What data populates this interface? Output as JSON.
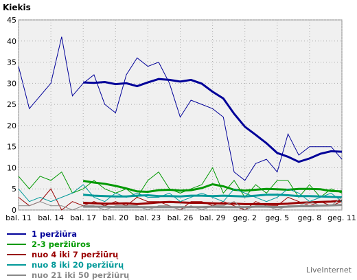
{
  "chart_data": {
    "type": "line",
    "title": "",
    "ylabel": "Kiekis",
    "ylim": [
      0,
      45
    ],
    "yticks": [
      0,
      5,
      10,
      15,
      20,
      25,
      30,
      35,
      40,
      45
    ],
    "x_labels": [
      "bal. 11",
      "bal. 14",
      "bal. 17",
      "bal. 20",
      "bal. 23",
      "bal. 26",
      "bal. 29",
      "geg. 2",
      "geg. 5",
      "geg. 8",
      "geg. 11"
    ],
    "grid": true,
    "series": [
      {
        "name": "1 peržiūra",
        "color": "#000099",
        "daily": [
          34,
          24,
          27,
          30,
          41,
          27,
          30,
          32,
          25,
          23,
          32,
          36,
          34,
          35,
          30,
          22,
          26,
          25,
          24,
          22,
          9,
          7,
          11,
          12,
          9,
          18,
          13,
          15,
          15,
          15,
          12
        ],
        "average": [
          30.2,
          30.1,
          30.3,
          29.8,
          30.0,
          29.3,
          30.2,
          31.0,
          30.8,
          30.4,
          30.8,
          29.9,
          28.0,
          26.4,
          22.8,
          19.7,
          17.8,
          15.8,
          13.5,
          12.6,
          11.4,
          12.2,
          13.3,
          13.9,
          13.8
        ]
      },
      {
        "name": "2-3 peržiūros",
        "color": "#009900",
        "daily": [
          8,
          5,
          8,
          7,
          9,
          4,
          5,
          7,
          5,
          4,
          5,
          3,
          7,
          9,
          5,
          4,
          5,
          6,
          10,
          4,
          7,
          3,
          6,
          4,
          7,
          7,
          3,
          6,
          3,
          5,
          4
        ],
        "average": [
          6.9,
          6.5,
          6.2,
          5.7,
          5.1,
          4.4,
          4.3,
          4.7,
          4.8,
          4.6,
          4.7,
          5.2,
          6.1,
          5.6,
          4.8,
          4.6,
          4.8,
          5.0,
          4.9,
          4.8,
          5.0,
          5.0,
          4.9,
          4.5,
          4.4
        ]
      },
      {
        "name": "nuo 4 iki 7 peržiūrų",
        "color": "#990000",
        "daily": [
          3,
          1,
          2,
          5,
          0,
          2,
          1,
          2,
          1,
          2,
          1,
          3,
          2,
          2,
          1,
          0,
          2,
          2,
          1,
          2,
          1,
          0,
          2,
          1,
          1,
          3,
          2,
          1,
          2,
          1,
          2
        ],
        "average": [
          1.7,
          1.6,
          1.5,
          1.5,
          1.6,
          1.4,
          1.6,
          1.8,
          1.9,
          1.8,
          1.7,
          1.7,
          1.6,
          1.5,
          1.5,
          1.4,
          1.4,
          1.4,
          1.4,
          1.5,
          1.7,
          1.8,
          1.9,
          2.0,
          2.2
        ]
      },
      {
        "name": "nuo 8 iki 20 peržiūrų",
        "color": "#009999",
        "daily": [
          5,
          2,
          3,
          2,
          3,
          4,
          6,
          3,
          2,
          4,
          3,
          4,
          3,
          3,
          4,
          2,
          3,
          4,
          3,
          2,
          5,
          4,
          3,
          2,
          3,
          5,
          4,
          2,
          3,
          4,
          2
        ],
        "average": [
          3.6,
          3.4,
          3.3,
          3.2,
          3.2,
          3.4,
          3.5,
          3.3,
          3.3,
          3.2,
          3.4,
          3.4,
          3.3,
          3.4,
          3.3,
          3.2,
          3.4,
          3.6,
          3.6,
          3.5,
          3.3,
          3.3,
          3.2,
          3.1,
          3.0
        ]
      },
      {
        "name": "nuo 21 iki 50 peržiūrų",
        "color": "#888888",
        "daily": [
          1,
          1,
          2,
          1,
          1,
          0,
          1,
          1,
          0,
          1,
          1,
          1,
          0,
          1,
          1,
          0,
          1,
          0,
          1,
          1,
          2,
          0,
          1,
          1,
          0,
          1,
          1,
          2,
          1,
          1,
          3
        ],
        "average": [
          0.8,
          0.8,
          0.8,
          0.7,
          0.7,
          0.7,
          0.7,
          0.7,
          0.7,
          0.7,
          0.7,
          0.7,
          0.8,
          0.7,
          0.7,
          0.7,
          0.8,
          0.8,
          0.7,
          0.8,
          0.9,
          0.9,
          1.0,
          1.1,
          1.2
        ]
      }
    ]
  },
  "legend": [
    {
      "label": "1 peržiūra",
      "color": "#000099"
    },
    {
      "label": "2-3 peržiūros",
      "color": "#009900"
    },
    {
      "label": "nuo 4 iki 7 peržiūrų",
      "color": "#990000"
    },
    {
      "label": "nuo 8 iki 20 peržiūrų",
      "color": "#009999"
    },
    {
      "label": "nuo 21 iki 50 peržiūrų",
      "color": "#888888"
    }
  ],
  "branding": "LiveInternet"
}
